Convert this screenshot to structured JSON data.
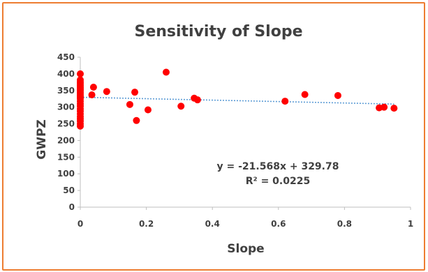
{
  "chart_data": {
    "type": "scatter",
    "title": "Sensitivity of Slope",
    "xlabel": "Slope",
    "ylabel": "GWPZ",
    "xlim": [
      0,
      1
    ],
    "ylim": [
      0,
      450
    ],
    "x_ticks": [
      "0",
      "0.2",
      "0.4",
      "0.6",
      "0.8",
      "1"
    ],
    "y_ticks": [
      "0",
      "50",
      "100",
      "150",
      "200",
      "250",
      "300",
      "350",
      "400",
      "450"
    ],
    "grid": false,
    "legend": "none",
    "point_color": "#FF0000",
    "trend_color": "#5B9BD5",
    "trendline": {
      "slope": -21.568,
      "intercept": 329.78,
      "equation": "y = -21.568x + 329.78",
      "r_squared": "R² = 0.0225"
    },
    "series": [
      {
        "x": [
          0,
          0,
          0,
          0,
          0,
          0,
          0,
          0,
          0,
          0,
          0,
          0,
          0,
          0,
          0,
          0,
          0,
          0,
          0,
          0,
          0,
          0,
          0,
          0,
          0.035,
          0.04,
          0.08,
          0.15,
          0.165,
          0.17,
          0.205,
          0.26,
          0.305,
          0.345,
          0.355,
          0.62,
          0.68,
          0.78,
          0.905,
          0.92,
          0.95
        ],
        "y": [
          400,
          382,
          375,
          370,
          365,
          360,
          355,
          350,
          345,
          340,
          335,
          330,
          325,
          318,
          310,
          303,
          295,
          288,
          280,
          272,
          265,
          258,
          250,
          243,
          337,
          360,
          347,
          308,
          345,
          260,
          292,
          405,
          303,
          327,
          322,
          318,
          338,
          335,
          298,
          300,
          297
        ]
      }
    ]
  }
}
